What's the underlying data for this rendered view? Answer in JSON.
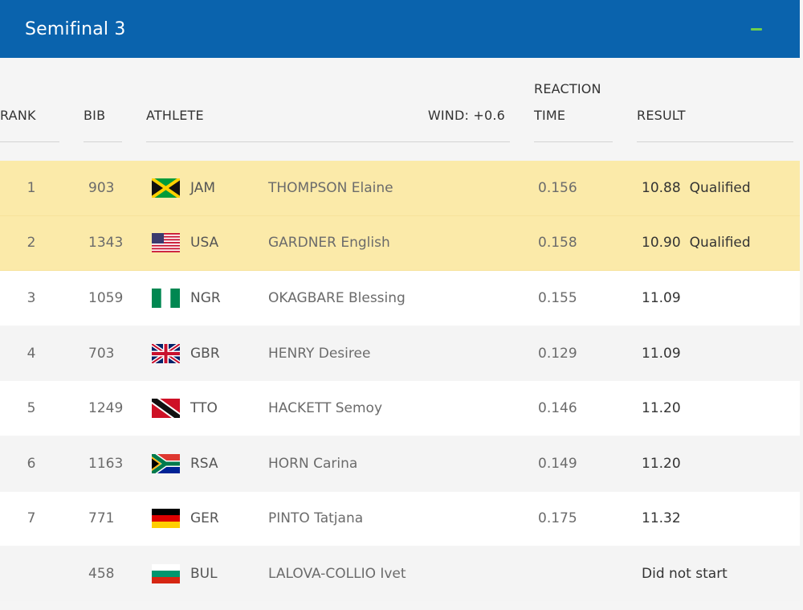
{
  "header": {
    "title": "Semifinal 3"
  },
  "columns": {
    "rank": "RANK",
    "bib": "BIB",
    "athlete": "ATHLETE",
    "wind": "WIND: +0.6",
    "reaction_line1": "REACTION",
    "reaction_line2": "TIME",
    "result": "RESULT"
  },
  "rows": [
    {
      "rank": "1",
      "bib": "903",
      "country": "JAM",
      "flag": "jamaica-flag-icon",
      "athlete": "THOMPSON Elaine",
      "reaction": "0.156",
      "result": "10.88",
      "status": "Qualified"
    },
    {
      "rank": "2",
      "bib": "1343",
      "country": "USA",
      "flag": "usa-flag-icon",
      "athlete": "GARDNER English",
      "reaction": "0.158",
      "result": "10.90",
      "status": "Qualified"
    },
    {
      "rank": "3",
      "bib": "1059",
      "country": "NGR",
      "flag": "nigeria-flag-icon",
      "athlete": "OKAGBARE Blessing",
      "reaction": "0.155",
      "result": "11.09",
      "status": ""
    },
    {
      "rank": "4",
      "bib": "703",
      "country": "GBR",
      "flag": "uk-flag-icon",
      "athlete": "HENRY Desiree",
      "reaction": "0.129",
      "result": "11.09",
      "status": ""
    },
    {
      "rank": "5",
      "bib": "1249",
      "country": "TTO",
      "flag": "trinidad-flag-icon",
      "athlete": "HACKETT Semoy",
      "reaction": "0.146",
      "result": "11.20",
      "status": ""
    },
    {
      "rank": "6",
      "bib": "1163",
      "country": "RSA",
      "flag": "south-africa-flag-icon",
      "athlete": "HORN Carina",
      "reaction": "0.149",
      "result": "11.20",
      "status": ""
    },
    {
      "rank": "7",
      "bib": "771",
      "country": "GER",
      "flag": "germany-flag-icon",
      "athlete": "PINTO Tatjana",
      "reaction": "0.175",
      "result": "11.32",
      "status": ""
    },
    {
      "rank": "",
      "bib": "458",
      "country": "BUL",
      "flag": "bulgaria-flag-icon",
      "athlete": "LALOVA-COLLIO Ivet",
      "reaction": "",
      "result": "Did not start",
      "status": ""
    }
  ],
  "colors": {
    "header_bg": "#0a63ad",
    "qualified_bg": "#fbeaa9",
    "collapse_icon": "#6fcf4b"
  }
}
